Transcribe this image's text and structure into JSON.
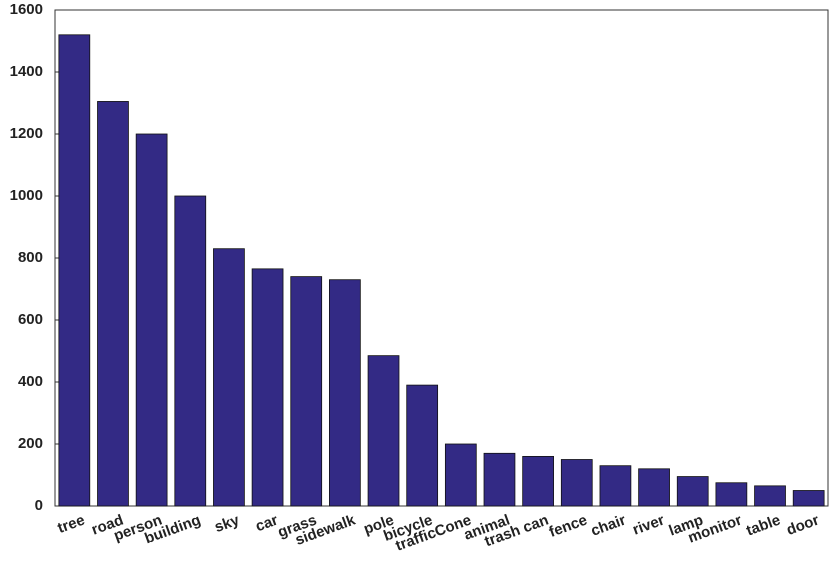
{
  "chart_data": {
    "type": "bar",
    "categories": [
      "tree",
      "road",
      "person",
      "building",
      "sky",
      "car",
      "grass",
      "sidewalk",
      "pole",
      "bicycle",
      "trafficCone",
      "animal",
      "trash can",
      "fence",
      "chair",
      "river",
      "lamp",
      "monitor",
      "table",
      "door"
    ],
    "values": [
      1520,
      1305,
      1200,
      1000,
      830,
      765,
      740,
      730,
      485,
      390,
      200,
      170,
      160,
      150,
      130,
      120,
      95,
      75,
      65,
      50
    ],
    "color": "#332a85",
    "ylim": [
      0,
      1600
    ],
    "yticks": [
      0,
      200,
      400,
      600,
      800,
      1000,
      1200,
      1400,
      1600
    ],
    "grid": false
  }
}
